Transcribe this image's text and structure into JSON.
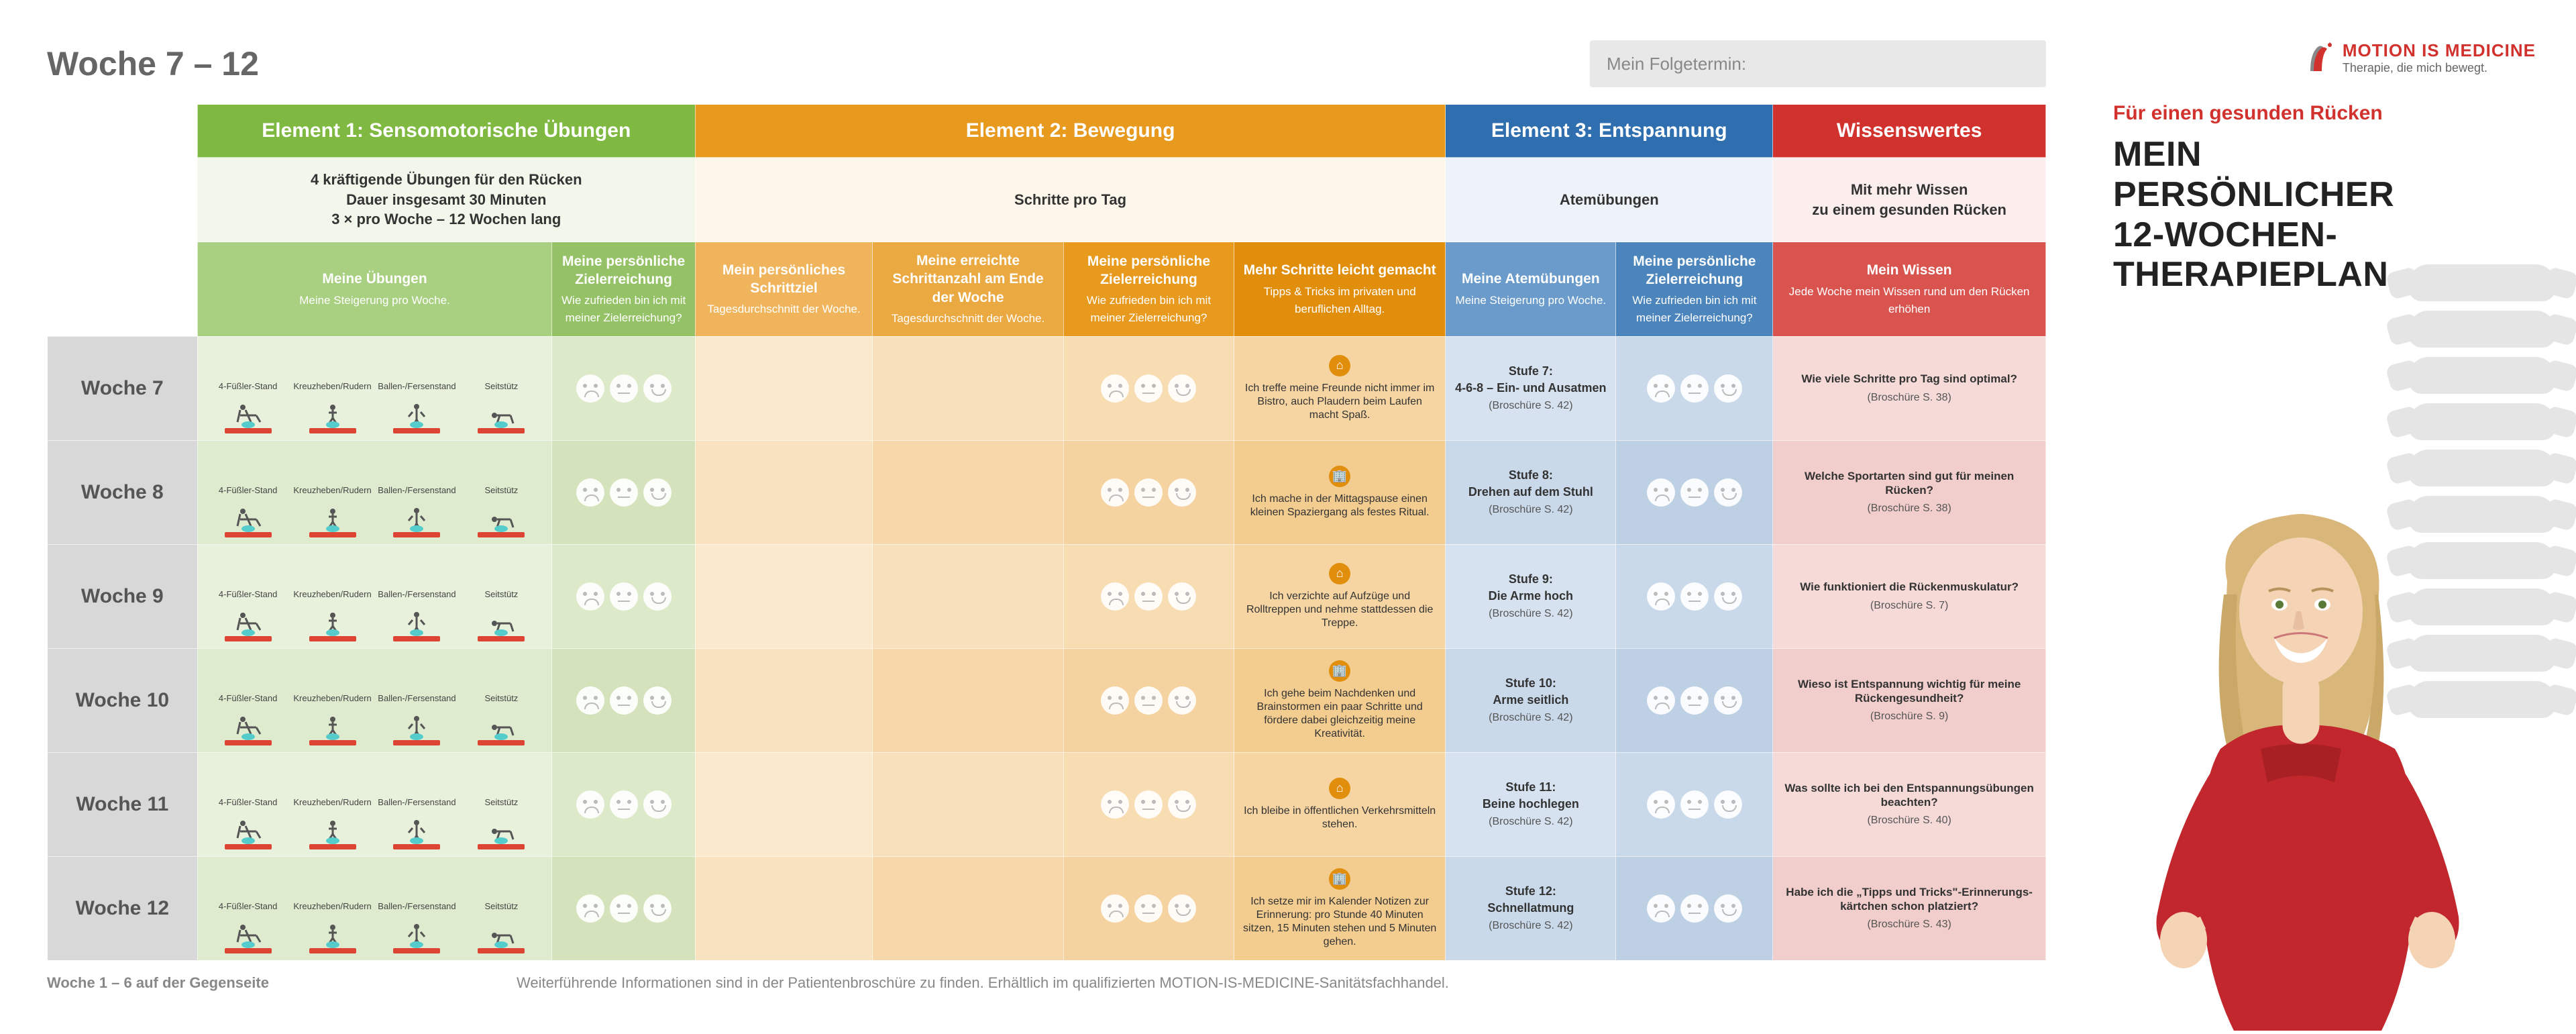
{
  "page_title": "Woche 7 – 12",
  "appointment_label": "Mein Folgetermin:",
  "colors": {
    "green": "#7fb941",
    "orange": "#e89a1f",
    "blue": "#2f6fb0",
    "red": "#d2322d",
    "row_gray": "#d8d8d8",
    "text_muted": "#888"
  },
  "headers": {
    "e1": "Element 1: Sensomotorische Übungen",
    "e2": "Element 2: Bewegung",
    "e3": "Element 3: Entspannung",
    "e4": "Wissenswertes"
  },
  "subheaders": {
    "e1": "4 kräftigende Übungen für den Rücken\nDauer insgesamt 30 Minuten\n3 × pro Woche – 12 Wochen lang",
    "e2": "Schritte pro Tag",
    "e3": "Atemübungen",
    "e4": "Mit mehr Wissen\nzu einem gesunden Rücken"
  },
  "cols": {
    "g1": {
      "t": "Meine Übungen",
      "d": "Meine Steigerung pro Woche."
    },
    "g2": {
      "t": "Meine persönliche Zielerreichung",
      "d": "Wie zufrieden bin ich mit meiner Zielerreichung?"
    },
    "o1": {
      "t": "Mein persönliches Schrittziel",
      "d": "Tagesdurchschnitt der Woche."
    },
    "o2": {
      "t": "Meine erreichte Schrittanzahl am Ende der Woche",
      "d": "Tagesdurchschnitt der Woche."
    },
    "o3": {
      "t": "Meine persönliche Zielerreichung",
      "d": "Wie zufrieden bin ich mit meiner Zielerreichung?"
    },
    "o4": {
      "t": "Mehr Schritte leicht gemacht",
      "d": "Tipps & Tricks im privaten und beruflichen Alltag."
    },
    "b1": {
      "t": "Meine Atemübungen",
      "d": "Meine Steigerung pro Woche."
    },
    "b2": {
      "t": "Meine persönliche Zielerreichung",
      "d": "Wie zufrieden bin ich mit meiner Zielerreichung?"
    },
    "r1": {
      "t": "Mein Wissen",
      "d": "Jede Woche mein Wissen rund um den Rücken erhöhen"
    }
  },
  "exercises": [
    "4-Füßler-Stand",
    "Kreuzheben/Rudern",
    "Ballen-/Fersenstand",
    "Seitstütz"
  ],
  "weeks": [
    {
      "label": "Woche 7",
      "tip_icon": "home",
      "tip": "Ich treffe meine Freunde nicht immer im Bistro, auch Plaudern beim Laufen macht Spaß.",
      "stufe_t": "Stufe 7:",
      "stufe_s": "4-6-8 – Ein- und Ausatmen",
      "stufe_r": "(Broschüre S. 42)",
      "know_q": "Wie viele Schritte pro Tag sind optimal?",
      "know_r": "(Broschüre S. 38)"
    },
    {
      "label": "Woche 8",
      "tip_icon": "work",
      "tip": "Ich mache in der Mittagspause einen kleinen Spaziergang als festes Ritual.",
      "stufe_t": "Stufe 8:",
      "stufe_s": "Drehen auf dem Stuhl",
      "stufe_r": "(Broschüre S. 42)",
      "know_q": "Welche Sportarten sind gut für meinen Rücken?",
      "know_r": "(Broschüre S. 38)"
    },
    {
      "label": "Woche 9",
      "tip_icon": "home",
      "tip": "Ich verzichte auf Aufzüge und Rolltreppen und nehme stattdessen die Treppe.",
      "stufe_t": "Stufe 9:",
      "stufe_s": "Die Arme hoch",
      "stufe_r": "(Broschüre S. 42)",
      "know_q": "Wie funktioniert die Rückenmuskulatur?",
      "know_r": "(Broschüre S. 7)"
    },
    {
      "label": "Woche 10",
      "tip_icon": "work",
      "tip": "Ich gehe beim Nachdenken und Brainstormen ein paar Schritte und fördere dabei gleichzeitig meine Kreativität.",
      "stufe_t": "Stufe 10:",
      "stufe_s": "Arme seitlich",
      "stufe_r": "(Broschüre S. 42)",
      "know_q": "Wieso ist Entspannung wichtig für meine Rückengesundheit?",
      "know_r": "(Broschüre S. 9)"
    },
    {
      "label": "Woche 11",
      "tip_icon": "home",
      "tip": "Ich bleibe in öffentlichen Verkehrsmitteln stehen.",
      "stufe_t": "Stufe 11:",
      "stufe_s": "Beine hochlegen",
      "stufe_r": "(Broschüre S. 42)",
      "know_q": "Was sollte ich bei den Entspannungsübungen beachten?",
      "know_r": "(Broschüre S. 40)"
    },
    {
      "label": "Woche 12",
      "tip_icon": "work",
      "tip": "Ich setze mir im Kalender Notizen zur Erinnerung: pro Stunde 40 Minuten sitzen, 15 Minuten stehen und 5 Minuten gehen.",
      "stufe_t": "Stufe 12:",
      "stufe_s": "Schnellatmung",
      "stufe_r": "(Broschüre S. 42)",
      "know_q": "Habe ich die „Tipps und Tricks\"-Erinnerungs­kärtchen schon platziert?",
      "know_r": "(Broschüre S. 43)"
    }
  ],
  "footer_l": "Woche 1 – 6 auf der Gegenseite",
  "footer_c": "Weiterführende Informationen sind in der Patientenbroschüre zu finden. Erhältlich im qualifizierten MOTION-IS-MEDICINE-Sanitätsfachhandel.",
  "side": {
    "logo_a": "MOTION IS MEDICINE",
    "logo_b": "Therapie, die mich bewegt.",
    "sub": "Für einen gesunden Rücken",
    "title": "MEIN\nPERSÖNLICHER\n12-WOCHEN-\nTHERAPIEPLAN"
  }
}
